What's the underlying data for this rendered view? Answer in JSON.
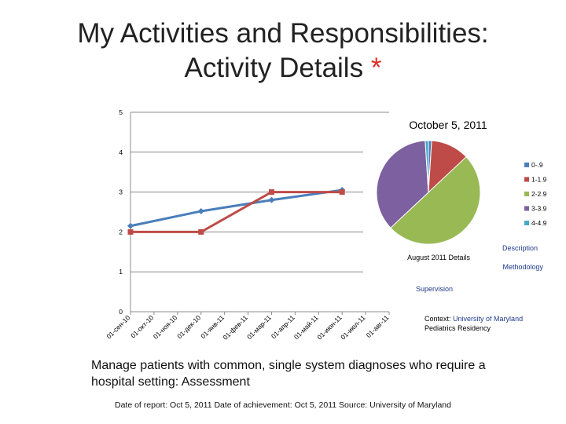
{
  "header": {
    "title_line1": "My Activities and Responsibilities:",
    "title_line2": "Activity Details",
    "title_star": "*"
  },
  "chart_data": [
    {
      "type": "line",
      "x": [
        "01-сен-10",
        "01-окт-10",
        "01-ноя-10",
        "01-дек-10",
        "01-янв-11",
        "01-фев-11",
        "01-мар-11",
        "01-апр-11",
        "01-май-11",
        "01-июн-11",
        "01-июл-11",
        "01-авг-11"
      ],
      "ylim": [
        0,
        5
      ],
      "yticks": [
        "0",
        "1",
        "2",
        "3",
        "4",
        "5"
      ],
      "grid": true,
      "series": [
        {
          "color": "#4a7ebb",
          "points": [
            [
              0,
              2.15
            ],
            [
              3,
              2.52
            ],
            [
              6,
              2.8
            ],
            [
              9,
              3.05
            ]
          ]
        },
        {
          "color": "#be4b48",
          "points": [
            [
              0,
              2.0
            ],
            [
              3,
              2.0
            ],
            [
              6,
              3.0
            ],
            [
              9,
              3.0
            ]
          ]
        }
      ]
    },
    {
      "type": "pie",
      "title": "October 5, 2011",
      "legend_position": "right",
      "slices": [
        {
          "label": "0-.9",
          "value": 1,
          "color": "#4a7ebb"
        },
        {
          "label": "1-1.9",
          "value": 12,
          "color": "#be4b48"
        },
        {
          "label": "2-2.9",
          "value": 50,
          "color": "#98b954"
        },
        {
          "label": "3-3.9",
          "value": 36,
          "color": "#7d60a0"
        },
        {
          "label": "4-4.9",
          "value": 1,
          "color": "#46aac5"
        }
      ]
    }
  ],
  "overlay": {
    "august_label": "August 2011 Details",
    "description_link": "Description",
    "methodology_link": "Methodology",
    "supervision_link": "Supervision",
    "context_label": "Context:",
    "context_value_line1": "University of Maryland",
    "context_value_line2": "Pediatrics Residency"
  },
  "body": {
    "activity_text": "Manage patients with common, single system diagnoses who require a hospital setting: Assessment",
    "footer": "Date of report: Oct 5, 2011 Date of achievement: Oct 5, 2011 Source: University of Maryland"
  }
}
